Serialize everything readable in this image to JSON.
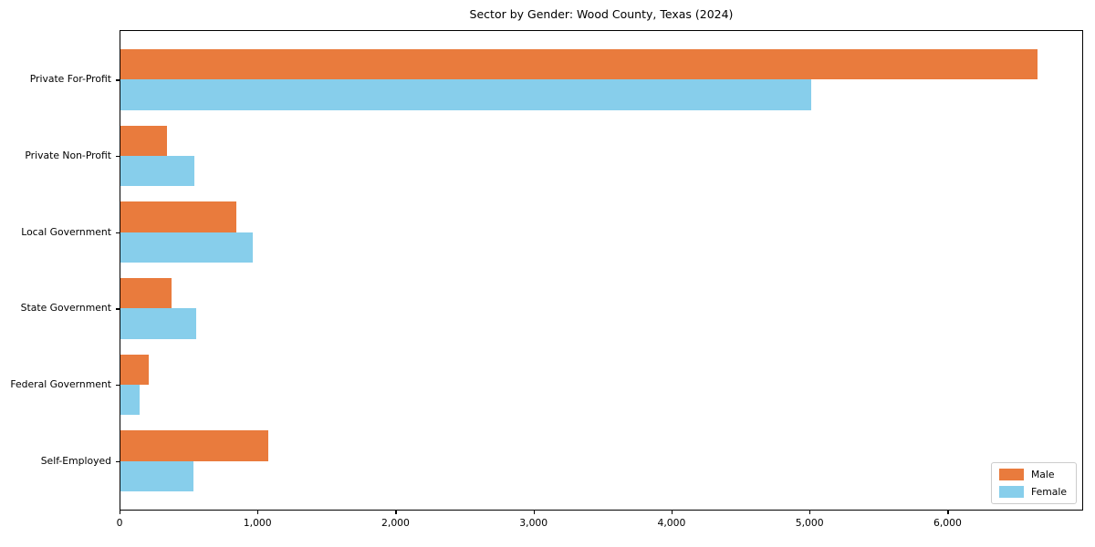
{
  "chart_data": {
    "type": "bar",
    "orientation": "horizontal",
    "title": "Sector by Gender: Wood County, Texas (2024)",
    "categories": [
      "Private For-Profit",
      "Private Non-Profit",
      "Local Government",
      "State Government",
      "Federal Government",
      "Self-Employed"
    ],
    "series": [
      {
        "name": "Male",
        "color": "#e97b3d",
        "values": [
          6650,
          345,
          845,
          380,
          210,
          1080
        ]
      },
      {
        "name": "Female",
        "color": "#87ceeb",
        "values": [
          5010,
          540,
          965,
          555,
          145,
          535
        ]
      }
    ],
    "xlabel": "",
    "ylabel": "",
    "xlim": [
      0,
      6982
    ],
    "xticks": [
      0,
      1000,
      2000,
      3000,
      4000,
      5000,
      6000
    ],
    "xtick_labels": [
      "0",
      "1,000",
      "2,000",
      "3,000",
      "4,000",
      "5,000",
      "6,000"
    ],
    "grid": false,
    "legend_position": "lower right",
    "plot_background": "#ffffff",
    "spine_color": "#000000"
  }
}
